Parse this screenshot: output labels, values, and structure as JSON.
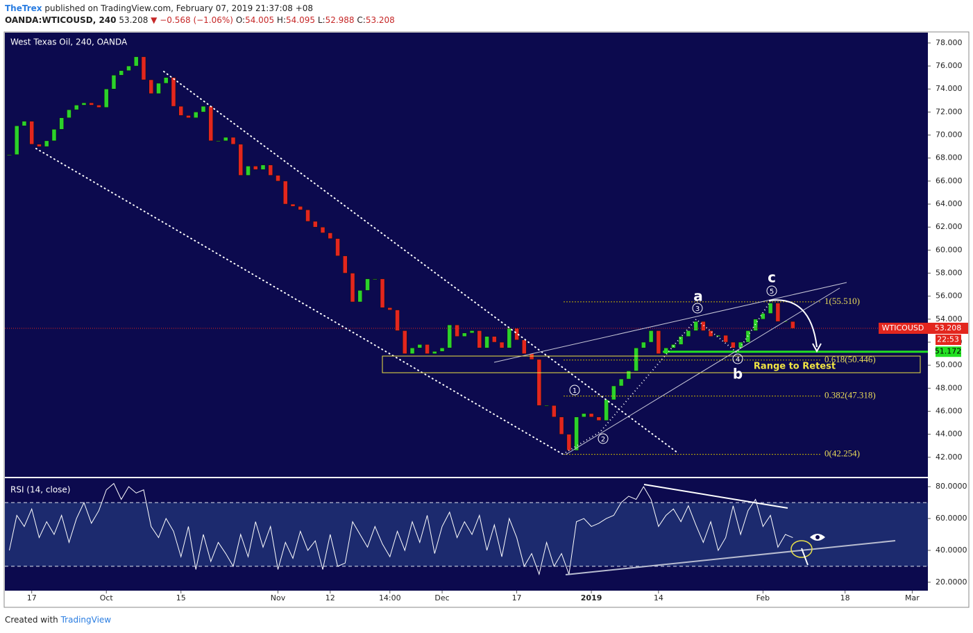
{
  "header": {
    "author": "TheTrex",
    "published": "published on TradingView.com, February 07, 2019 21:37:08 +08",
    "symbol": "OANDA:WTICOUSD, 240",
    "last": "53.208",
    "change": "▼ −0.568 (−1.06%)",
    "open_label": "O:",
    "open": "54.005",
    "high_label": "H:",
    "high": "54.095",
    "low_label": "L:",
    "low": "52.988",
    "close_label": "C:",
    "close": "53.208"
  },
  "footer": {
    "text": "Created with",
    "brand": "TradingView"
  },
  "annotations": {
    "wave_a": "a",
    "wave_b": "b",
    "wave_c": "c",
    "w1": "1",
    "w2": "2",
    "w3": "3",
    "w4": "4",
    "w5": "5",
    "range": "Range to Retest"
  },
  "chart_data": [
    {
      "type": "candlestick",
      "title": "West Texas Oil, 240, OANDA",
      "x": [
        -3,
        -2,
        -1,
        0,
        1,
        2,
        3,
        4,
        5,
        6,
        7,
        8,
        9,
        10,
        11,
        12,
        13,
        14,
        15,
        16,
        17,
        18,
        19,
        20,
        21,
        22,
        23,
        24,
        25,
        26,
        27,
        28,
        29,
        30,
        31,
        32,
        33,
        34,
        35,
        36,
        37,
        38,
        39,
        40,
        41,
        42,
        43,
        44,
        45,
        46,
        47,
        48,
        49,
        50,
        51,
        52,
        53,
        54,
        55,
        56,
        57,
        58,
        59,
        60,
        61,
        62,
        63,
        64,
        65,
        66,
        67,
        68,
        69,
        70,
        71,
        72,
        73,
        74,
        75,
        76,
        77,
        78,
        79,
        80,
        81,
        82,
        83,
        84,
        85,
        86,
        87,
        88,
        89,
        90,
        91,
        92,
        93,
        94,
        95,
        96,
        97,
        98,
        99,
        100,
        101,
        102
      ],
      "series": [
        {
          "name": "WTICOUSD",
          "up_color": "#2bd22b",
          "down_color": "#e3261e",
          "values": [
            68.3,
            70.8,
            71.2,
            69.2,
            69.0,
            69.5,
            70.5,
            71.5,
            72.2,
            72.6,
            72.8,
            72.6,
            72.4,
            74.0,
            75.2,
            75.6,
            76.0,
            76.8,
            74.8,
            73.6,
            74.5,
            75.0,
            72.5,
            71.7,
            71.5,
            72.0,
            72.5,
            69.5,
            69.5,
            69.8,
            69.2,
            66.5,
            67.3,
            67.0,
            67.4,
            66.5,
            66.0,
            64.0,
            63.8,
            63.5,
            62.5,
            62.0,
            61.5,
            61.0,
            59.5,
            58.0,
            55.5,
            56.5,
            57.5,
            57.5,
            55.0,
            54.8,
            53.0,
            51.0,
            51.5,
            51.8,
            51.0,
            51.2,
            51.5,
            53.5,
            52.5,
            52.8,
            53.0,
            51.5,
            52.5,
            52.0,
            51.5,
            53.2,
            52.2,
            51.0,
            50.5,
            46.5,
            46.5,
            45.5,
            44.0,
            42.6,
            45.5,
            45.8,
            45.5,
            45.2,
            47.0,
            48.2,
            48.8,
            49.5,
            51.5,
            52.0,
            53.0,
            51.0,
            51.5,
            51.8,
            52.5,
            53.0,
            53.8,
            53.0,
            52.5,
            52.6,
            52.0,
            51.5,
            52.0,
            53.0,
            54.0,
            54.5,
            55.4,
            53.8,
            53.8,
            53.2
          ]
        }
      ],
      "xlim": [
        -3.6,
        120.1
      ],
      "ylim": [
        40.3,
        78.9
      ],
      "yticks": [
        {
          "value": 42,
          "label": "42.000"
        },
        {
          "value": 44,
          "label": "44.000"
        },
        {
          "value": 46,
          "label": "46.000"
        },
        {
          "value": 48,
          "label": "48.000"
        },
        {
          "value": 50,
          "label": "50.000"
        },
        {
          "value": 52,
          "label": "52.000"
        },
        {
          "value": 54,
          "label": "54.000"
        },
        {
          "value": 56,
          "label": "56.000"
        },
        {
          "value": 58,
          "label": "58.000"
        },
        {
          "value": 60,
          "label": "60.000"
        },
        {
          "value": 62,
          "label": "62.000"
        },
        {
          "value": 64,
          "label": "64.000"
        },
        {
          "value": 66,
          "label": "66.000"
        },
        {
          "value": 68,
          "label": "68.000"
        },
        {
          "value": 70,
          "label": "70.000"
        },
        {
          "value": 72,
          "label": "72.000"
        },
        {
          "value": 74,
          "label": "74.000"
        },
        {
          "value": 76,
          "label": "76.000"
        },
        {
          "value": 78,
          "label": "78.000"
        }
      ],
      "last_price": 53.208,
      "countdown": "22:53",
      "alert_price": 51.172,
      "fib_levels": [
        {
          "value": 55.51,
          "label": "1(55.510)"
        },
        {
          "value": 50.446,
          "label": "0.618(50.446)"
        },
        {
          "value": 47.318,
          "label": "0.382(47.318)"
        },
        {
          "value": 42.254,
          "label": "0(42.254)"
        }
      ]
    },
    {
      "type": "line",
      "title": "RSI (14, close)",
      "x": [
        -3,
        -2,
        -1,
        0,
        1,
        2,
        3,
        4,
        5,
        6,
        7,
        8,
        9,
        10,
        11,
        12,
        13,
        14,
        15,
        16,
        17,
        18,
        19,
        20,
        21,
        22,
        23,
        24,
        25,
        26,
        27,
        28,
        29,
        30,
        31,
        32,
        33,
        34,
        35,
        36,
        37,
        38,
        39,
        40,
        41,
        42,
        43,
        44,
        45,
        46,
        47,
        48,
        49,
        50,
        51,
        52,
        53,
        54,
        55,
        56,
        57,
        58,
        59,
        60,
        61,
        62,
        63,
        64,
        65,
        66,
        67,
        68,
        69,
        70,
        71,
        72,
        73,
        74,
        75,
        76,
        77,
        78,
        79,
        80,
        81,
        82,
        83,
        84,
        85,
        86,
        87,
        88,
        89,
        90,
        91,
        92,
        93,
        94,
        95,
        96,
        97,
        98,
        99,
        100,
        101,
        102
      ],
      "series": [
        {
          "color": "#ffffff",
          "values": [
            40,
            62,
            55,
            66,
            48,
            58,
            50,
            62,
            45,
            60,
            70,
            57,
            65,
            78,
            82,
            72,
            80,
            76,
            78,
            55,
            48,
            60,
            52,
            36,
            55,
            28,
            50,
            33,
            45,
            38,
            30,
            50,
            36,
            58,
            42,
            55,
            28,
            45,
            35,
            52,
            40,
            46,
            28,
            50,
            30,
            32,
            58,
            50,
            42,
            55,
            44,
            36,
            52,
            40,
            58,
            45,
            62,
            38,
            55,
            64,
            48,
            58,
            50,
            62,
            40,
            56,
            36,
            60,
            48,
            30,
            38,
            25,
            45,
            30,
            38,
            25,
            58,
            60,
            55,
            57,
            60,
            62,
            70,
            74,
            72,
            80,
            72,
            55,
            62,
            66,
            58,
            68,
            56,
            45,
            58,
            40,
            48,
            68,
            50,
            65,
            72,
            55,
            62,
            42,
            50,
            48
          ]
        }
      ],
      "band": [
        30,
        70
      ],
      "xlim": [
        -3.6,
        120.1
      ],
      "ylim": [
        14.7,
        85.3
      ],
      "yticks": [
        {
          "value": 20,
          "label": "20.0000"
        },
        {
          "value": 40,
          "label": "40.0000"
        },
        {
          "value": 60,
          "label": "60.0000"
        },
        {
          "value": 80,
          "label": "80.0000"
        }
      ],
      "xticks": [
        {
          "value": 0,
          "label": "17"
        },
        {
          "value": 10,
          "label": "Oct"
        },
        {
          "value": 20,
          "label": "15"
        },
        {
          "value": 33,
          "label": "Nov"
        },
        {
          "value": 40,
          "label": "12"
        },
        {
          "value": 48,
          "label": "14:00"
        },
        {
          "value": 55,
          "label": "Dec"
        },
        {
          "value": 65,
          "label": "17"
        },
        {
          "value": 75,
          "label": "2019"
        },
        {
          "value": 84,
          "label": "14"
        },
        {
          "value": 98,
          "label": "Feb"
        },
        {
          "value": 109,
          "label": "18"
        },
        {
          "value": 118,
          "label": "Mar"
        }
      ]
    }
  ]
}
